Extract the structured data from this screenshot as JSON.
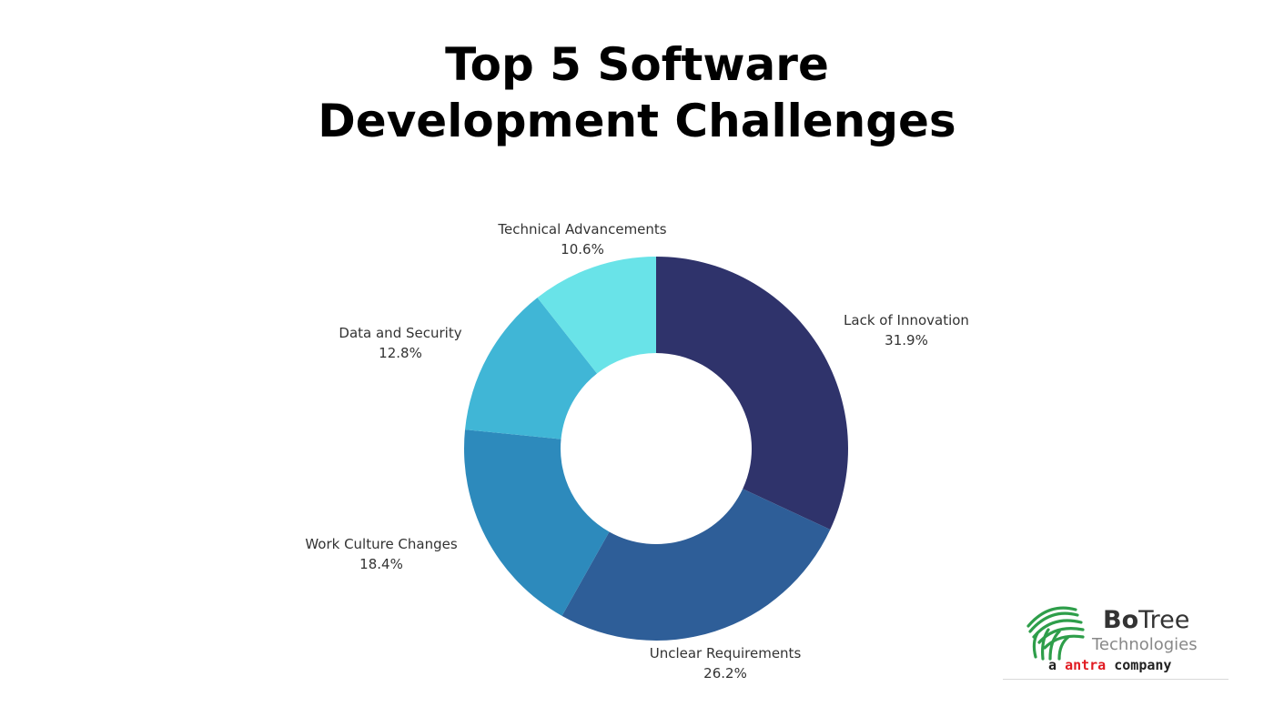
{
  "chart_data": {
    "type": "pie",
    "title_line1": "Top 5 Software",
    "title_line2": "Development Challenges",
    "slices": [
      {
        "label": "Lack of Innovation",
        "value": 31.9,
        "value_text": "31.9%",
        "color": "#2f336b"
      },
      {
        "label": "Unclear Requirements",
        "value": 26.2,
        "value_text": "26.2%",
        "color": "#2e5e98"
      },
      {
        "label": "Work Culture Changes",
        "value": 18.4,
        "value_text": "18.4%",
        "color": "#2d8abc"
      },
      {
        "label": "Data and Security",
        "value": 12.8,
        "value_text": "12.8%",
        "color": "#40b6d6"
      },
      {
        "label": "Technical Advancements",
        "value": 10.6,
        "value_text": "10.6%",
        "color": "#69e3e8"
      }
    ],
    "donut": true,
    "legend": "none"
  },
  "logo": {
    "name_bold": "Bo",
    "name_rest": "Tree",
    "sub": "Technologies",
    "tag_pre": "a",
    "tag_brand": "antra",
    "tag_post": "company",
    "leaf_color": "#2e9e4a",
    "accent_color": "#e11b22"
  }
}
